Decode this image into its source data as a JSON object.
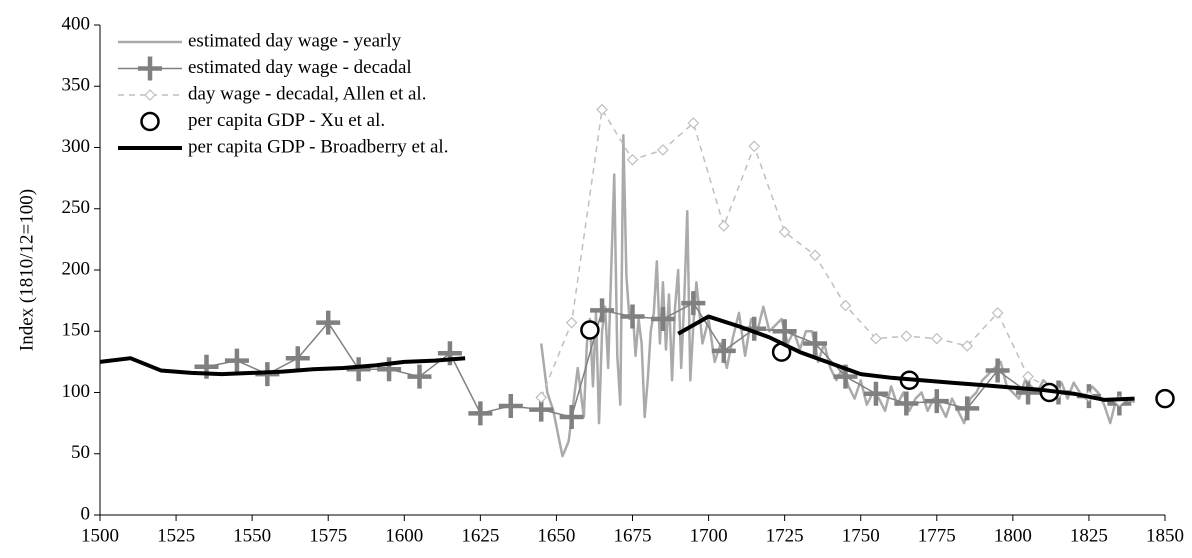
{
  "chart_data": {
    "type": "line",
    "ylabel": "Index (1810/12=100)",
    "xlim": [
      1500,
      1850
    ],
    "xticks": [
      1500,
      1525,
      1550,
      1575,
      1600,
      1625,
      1650,
      1675,
      1700,
      1725,
      1750,
      1775,
      1800,
      1825,
      1850
    ],
    "ylim": [
      0,
      400
    ],
    "yticks": [
      0,
      50,
      100,
      150,
      200,
      250,
      300,
      350,
      400
    ],
    "legend": "upper left",
    "series": [
      {
        "name": "estimated day wage - yearly",
        "color": "#aaaaaa",
        "line_width": 2.5,
        "marker": "none",
        "dashed": false,
        "line": true,
        "x": [
          1645,
          1647,
          1649,
          1651,
          1652,
          1654,
          1656,
          1657,
          1659,
          1660,
          1661,
          1662,
          1663,
          1664,
          1665,
          1666,
          1667,
          1668,
          1669,
          1670,
          1671,
          1672,
          1673,
          1674,
          1675,
          1676,
          1677,
          1678,
          1679,
          1680,
          1681,
          1682,
          1683,
          1684,
          1685,
          1686,
          1687,
          1688,
          1689,
          1690,
          1691,
          1692,
          1693,
          1694,
          1695,
          1696,
          1697,
          1698,
          1700,
          1702,
          1704,
          1706,
          1708,
          1710,
          1712,
          1714,
          1716,
          1718,
          1720,
          1722,
          1724,
          1726,
          1728,
          1730,
          1732,
          1734,
          1736,
          1738,
          1740,
          1742,
          1744,
          1746,
          1748,
          1750,
          1752,
          1754,
          1756,
          1758,
          1760,
          1762,
          1764,
          1766,
          1768,
          1770,
          1772,
          1774,
          1776,
          1778,
          1780,
          1782,
          1784,
          1786,
          1788,
          1790,
          1792,
          1794,
          1796,
          1798,
          1800,
          1802,
          1804,
          1806,
          1808,
          1810,
          1812,
          1814,
          1816,
          1818,
          1820,
          1822,
          1824,
          1826,
          1828,
          1830,
          1832,
          1834,
          1836,
          1838,
          1840
        ],
        "values": [
          140,
          100,
          85,
          60,
          48,
          60,
          100,
          120,
          80,
          140,
          160,
          105,
          165,
          75,
          150,
          170,
          120,
          200,
          278,
          130,
          90,
          310,
          195,
          160,
          170,
          130,
          160,
          140,
          80,
          110,
          150,
          165,
          207,
          140,
          190,
          135,
          180,
          110,
          170,
          200,
          120,
          175,
          248,
          110,
          155,
          190,
          165,
          140,
          160,
          125,
          140,
          120,
          145,
          165,
          130,
          160,
          150,
          170,
          150,
          155,
          160,
          140,
          150,
          135,
          150,
          150,
          125,
          140,
          120,
          110,
          120,
          105,
          95,
          110,
          90,
          100,
          95,
          85,
          105,
          90,
          100,
          85,
          95,
          100,
          85,
          95,
          90,
          80,
          95,
          85,
          75,
          95,
          100,
          110,
          115,
          120,
          125,
          105,
          100,
          95,
          110,
          105,
          100,
          110,
          105,
          100,
          108,
          95,
          108,
          100,
          95,
          105,
          100,
          90,
          75,
          95,
          90,
          95,
          92
        ]
      },
      {
        "name": "estimated day wage - decadal",
        "color": "#808080",
        "line_width": 1.5,
        "marker": "plus",
        "dashed": false,
        "line": true,
        "x": [
          1535,
          1545,
          1555,
          1565,
          1575,
          1585,
          1595,
          1605,
          1615,
          1625,
          1635,
          1645,
          1655,
          1665,
          1675,
          1685,
          1695,
          1705,
          1715,
          1725,
          1735,
          1745,
          1755,
          1765,
          1775,
          1785,
          1795,
          1805,
          1815,
          1825,
          1835
        ],
        "values": [
          121,
          126,
          115,
          128,
          157,
          119,
          119,
          113,
          132,
          83,
          89,
          86,
          80,
          167,
          162,
          160,
          173,
          134,
          152,
          150,
          140,
          113,
          99,
          91,
          93,
          87,
          118,
          100,
          100,
          97,
          91
        ]
      },
      {
        "name": "day wage - decadal, Allen et al.",
        "color": "#bfbfbf",
        "line_width": 1.5,
        "marker": "diamond",
        "dashed": true,
        "line": true,
        "x": [
          1645,
          1655,
          1665,
          1675,
          1685,
          1695,
          1705,
          1715,
          1725,
          1735,
          1745,
          1755,
          1765,
          1775,
          1785,
          1795,
          1805,
          1815,
          1825,
          1835
        ],
        "values": [
          96,
          157,
          331,
          290,
          298,
          320,
          236,
          301,
          231,
          212,
          171,
          144,
          146,
          144,
          138,
          165,
          113,
          100,
          97,
          93
        ]
      },
      {
        "name": "per capita GDP - Xu et al.",
        "color": "#000000",
        "line_width": 0,
        "marker": "circle",
        "dashed": false,
        "line": false,
        "x": [
          1661,
          1724,
          1766,
          1812,
          1850
        ],
        "values": [
          151,
          133,
          110,
          100,
          95
        ]
      },
      {
        "name": "per capita GDP - Broadberry et al.",
        "color": "#000000",
        "line_width": 4,
        "marker": "none",
        "dashed": false,
        "line": true,
        "x": [
          1500,
          1510,
          1520,
          1530,
          1540,
          1550,
          1560,
          1570,
          1580,
          1590,
          1600,
          1610,
          1620,
          null,
          1690,
          1700,
          1710,
          1720,
          1730,
          1740,
          1750,
          1760,
          1770,
          1780,
          1790,
          1800,
          1810,
          1820,
          1830,
          1840
        ],
        "values": [
          125,
          128,
          118,
          116,
          115,
          116,
          117,
          119,
          120,
          122,
          125,
          126,
          128,
          null,
          148,
          162,
          154,
          145,
          133,
          124,
          115,
          112,
          110,
          108,
          106,
          104,
          102,
          99,
          94,
          95
        ]
      }
    ]
  }
}
